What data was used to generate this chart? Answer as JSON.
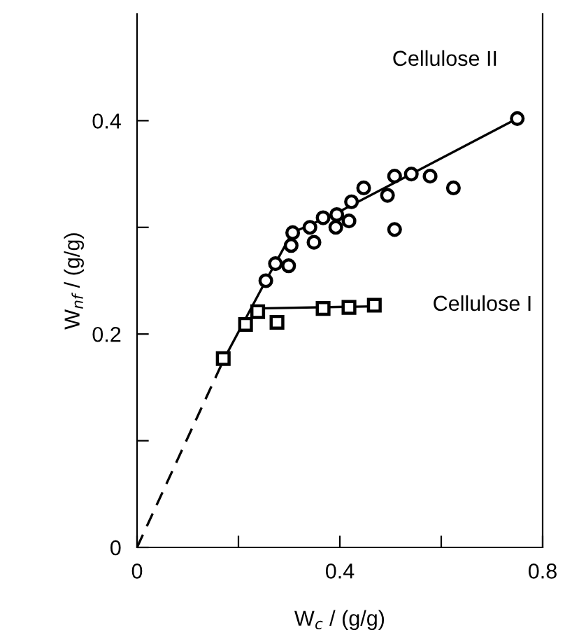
{
  "chart_data": {
    "type": "scatter",
    "xlabel": "W$_{c}$ / (g/g)",
    "ylabel": "W$_{nf}$ / (g/g)",
    "xlim": [
      0,
      0.8
    ],
    "ylim": [
      0,
      0.5
    ],
    "xticks": [
      0,
      {
        "value": 0.2,
        "label": null
      },
      0.4,
      {
        "value": 0.6,
        "label": null
      },
      0.8
    ],
    "yticks": [
      0,
      {
        "value": 0.1,
        "label": null
      },
      0.2,
      {
        "value": 0.3,
        "label": null
      },
      0.4
    ],
    "grid": false,
    "legend": false,
    "series": [
      {
        "name": "Cellulose II",
        "marker": "circle",
        "color": "#000000",
        "x": [
          0.254,
          0.273,
          0.299,
          0.304,
          0.307,
          0.349,
          0.341,
          0.367,
          0.392,
          0.394,
          0.418,
          0.423,
          0.447,
          0.494,
          0.508,
          0.508,
          0.541,
          0.578,
          0.624,
          0.75
        ],
        "values": [
          0.25,
          0.266,
          0.264,
          0.283,
          0.295,
          0.286,
          0.3,
          0.309,
          0.3,
          0.312,
          0.306,
          0.324,
          0.337,
          0.33,
          0.298,
          0.348,
          0.35,
          0.348,
          0.337,
          0.402
        ]
      },
      {
        "name": "Cellulose I",
        "type": "scatter",
        "marker": "square",
        "color": "#000000",
        "x": [
          0.17,
          0.214,
          0.238,
          0.276,
          0.367,
          0.418,
          0.468
        ],
        "values": [
          0.177,
          0.209,
          0.221,
          0.211,
          0.224,
          0.225,
          0.227
        ]
      },
      {
        "type": "line",
        "line_style": "solid",
        "color": "#000000",
        "x": [
          0.172,
          0.254,
          0.306,
          0.392,
          0.75
        ],
        "values": [
          0.177,
          0.25,
          0.295,
          0.313,
          0.402
        ]
      },
      {
        "type": "line",
        "line_style": "solid",
        "color": "#000000",
        "x": [
          0.238,
          0.468
        ],
        "values": [
          0.224,
          0.226
        ]
      },
      {
        "type": "line",
        "line_style": "dashed",
        "color": "#000000",
        "x": [
          0,
          0.172
        ],
        "values": [
          0,
          0.177
        ]
      }
    ]
  }
}
